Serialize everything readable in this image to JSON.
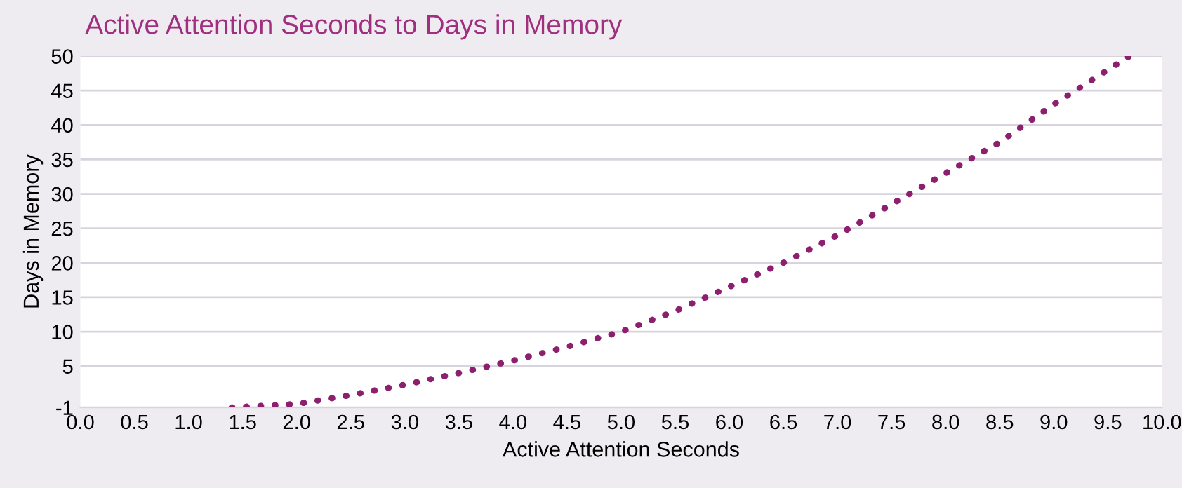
{
  "chart_data": {
    "type": "line",
    "title": "Active Attention Seconds to Days in Memory",
    "xlabel": "Active Attention Seconds",
    "ylabel": "Days in Memory",
    "x": [
      1.4,
      2.0,
      2.5,
      3.0,
      3.5,
      4.0,
      4.5,
      5.0,
      5.5,
      6.0,
      6.5,
      7.0,
      7.5,
      8.0,
      8.5,
      9.0,
      9.5,
      9.7
    ],
    "series": [
      {
        "color": "#8c1f6e",
        "values": [
          -1,
          -0.5,
          0.8,
          2.3,
          4,
          5.8,
          7.8,
          10,
          13,
          16.5,
          20,
          24,
          28.5,
          33,
          37.5,
          43,
          48,
          50
        ]
      }
    ],
    "line_style": "dotted",
    "grid": "y",
    "xlim": [
      0,
      10
    ],
    "xticks": [
      {
        "value": 0,
        "label": "0.0"
      },
      0.5,
      {
        "value": 1,
        "label": "1.0"
      },
      1.5,
      {
        "value": 2,
        "label": "2.0"
      },
      2.5,
      {
        "value": 3,
        "label": "3.0"
      },
      3.5,
      {
        "value": 4,
        "label": "4.0"
      },
      4.5,
      {
        "value": 5,
        "label": "5.0"
      },
      5.5,
      {
        "value": 6,
        "label": "6.0"
      },
      6.5,
      {
        "value": 7,
        "label": "7.0"
      },
      7.5,
      {
        "value": 8,
        "label": "8.0"
      },
      8.5,
      {
        "value": 9,
        "label": "9.0"
      },
      9.5,
      {
        "value": 10,
        "label": "10.0"
      }
    ],
    "ylim": [
      -1,
      50
    ],
    "yticks": [
      -1,
      5,
      10,
      15,
      20,
      25,
      30,
      35,
      40,
      45,
      50
    ]
  }
}
